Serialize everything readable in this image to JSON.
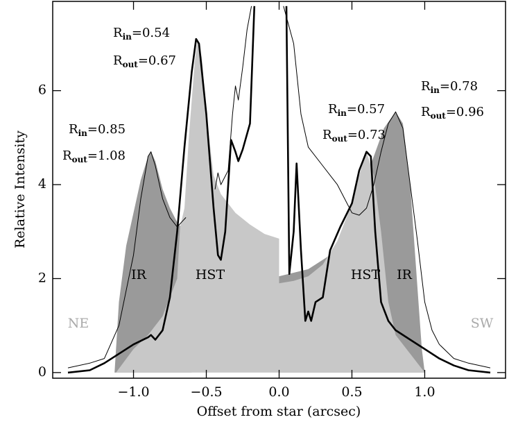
{
  "chart_data": {
    "type": "line",
    "xlabel": "Offset from star (arcsec)",
    "ylabel": "Relative Intensity",
    "xlim": [
      -1.555,
      1.555
    ],
    "ylim": [
      -0.12,
      7.9
    ],
    "xticks": [
      {
        "value": -1,
        "label": "−1.0"
      },
      {
        "value": -0.5,
        "label": "−0.5"
      },
      {
        "value": 0,
        "label": "0.0"
      },
      {
        "value": 0.5,
        "label": "0.5"
      },
      {
        "value": 1,
        "label": "1.0"
      }
    ],
    "yticks": [
      0,
      2,
      4,
      6
    ],
    "series": [
      {
        "style": "area",
        "color": "#9a9a9a",
        "x": [
          -1.13,
          -1.1,
          -1.05,
          -1.0,
          -0.95,
          -0.9,
          -0.88,
          -0.85,
          -0.8,
          -0.75,
          -0.7,
          -0.65,
          -0.6,
          null,
          0.0,
          0.2,
          0.35,
          0.45,
          0.55,
          0.65,
          0.72,
          0.8,
          0.85,
          0.9,
          0.95,
          0.98,
          1.0
        ],
        "values": [
          0,
          1.5,
          2.7,
          3.4,
          4.1,
          4.6,
          4.7,
          4.5,
          3.9,
          3.5,
          3.2,
          3.0,
          2.9,
          null,
          2.05,
          2.2,
          2.5,
          3.0,
          3.8,
          4.6,
          5.2,
          5.55,
          5.3,
          4.0,
          1.8,
          0.5,
          0
        ]
      },
      {
        "style": "area",
        "color": "#c8c8c8",
        "x": [
          -1.12,
          -1.0,
          -0.9,
          -0.8,
          -0.7,
          -0.68,
          -0.65,
          -0.62,
          -0.58,
          -0.56,
          -0.53,
          -0.5,
          -0.45,
          -0.4,
          -0.3,
          -0.2,
          -0.1,
          0.0,
          null,
          0.0,
          0.1,
          0.2,
          0.3,
          0.4,
          0.5,
          0.55,
          0.6,
          0.65,
          0.7,
          0.75,
          0.8,
          0.9,
          1.0
        ],
        "values": [
          0,
          0.5,
          0.8,
          1.2,
          2.0,
          3.1,
          3.5,
          5.0,
          6.6,
          7.1,
          6.7,
          5.5,
          4.2,
          3.8,
          3.4,
          3.15,
          2.95,
          2.85,
          null,
          1.9,
          1.95,
          2.05,
          2.3,
          2.8,
          3.6,
          4.2,
          4.7,
          4.2,
          3.0,
          1.5,
          0.8,
          0.4,
          0
        ]
      },
      {
        "style": "thin",
        "color": "#000000",
        "x": [
          -1.45,
          -1.3,
          -1.2,
          -1.1,
          -1.0,
          -0.95,
          -0.9,
          -0.88,
          -0.85,
          -0.8,
          -0.75,
          -0.7,
          -0.67,
          -0.64,
          null,
          -0.44,
          -0.42,
          -0.4,
          -0.35,
          -0.32,
          -0.3,
          -0.28,
          -0.25,
          -0.22,
          -0.19,
          null,
          0.03,
          0.1,
          0.15,
          0.2,
          0.3,
          0.4,
          0.45,
          0.5,
          0.55,
          0.6,
          0.65,
          0.7,
          0.75,
          0.8,
          0.85,
          0.9,
          0.95,
          1.0,
          1.05,
          1.1,
          1.2,
          1.3,
          1.45
        ],
        "values": [
          0.1,
          0.2,
          0.3,
          1.0,
          2.5,
          3.7,
          4.6,
          4.7,
          4.4,
          3.7,
          3.3,
          3.1,
          3.2,
          3.3,
          null,
          3.9,
          4.25,
          4.0,
          4.3,
          5.5,
          6.1,
          5.8,
          6.5,
          7.3,
          7.8,
          null,
          7.8,
          7.0,
          5.5,
          4.8,
          4.4,
          4.0,
          3.7,
          3.4,
          3.35,
          3.5,
          4.0,
          4.7,
          5.3,
          5.55,
          5.2,
          4.0,
          2.8,
          1.5,
          0.9,
          0.6,
          0.3,
          0.2,
          0.1
        ]
      },
      {
        "style": "thick",
        "color": "#000000",
        "x": [
          -1.45,
          -1.3,
          -1.2,
          -1.1,
          -1.0,
          -0.9,
          -0.88,
          -0.85,
          -0.8,
          -0.75,
          -0.7,
          -0.65,
          -0.6,
          -0.57,
          -0.55,
          -0.5,
          -0.45,
          -0.42,
          -0.4,
          -0.37,
          -0.33,
          -0.3,
          -0.28,
          -0.25,
          -0.2,
          -0.17,
          null,
          0.05,
          0.07,
          0.1,
          0.12,
          0.15,
          0.18,
          0.2,
          0.22,
          0.25,
          0.3,
          0.35,
          0.42,
          0.5,
          0.55,
          0.6,
          0.63,
          0.66,
          0.7,
          0.75,
          0.8,
          0.9,
          1.0,
          1.1,
          1.2,
          1.3,
          1.45
        ],
        "values": [
          0.0,
          0.05,
          0.2,
          0.4,
          0.6,
          0.75,
          0.8,
          0.7,
          0.9,
          1.6,
          3.0,
          4.8,
          6.4,
          7.1,
          7.0,
          5.5,
          3.5,
          2.5,
          2.4,
          3.0,
          4.95,
          4.7,
          4.5,
          4.75,
          5.3,
          7.8,
          null,
          7.8,
          2.1,
          3.0,
          4.45,
          2.6,
          1.1,
          1.3,
          1.1,
          1.5,
          1.6,
          2.6,
          3.1,
          3.6,
          4.3,
          4.7,
          4.6,
          3.0,
          1.5,
          1.1,
          0.9,
          0.7,
          0.5,
          0.3,
          0.15,
          0.05,
          0.0
        ]
      }
    ],
    "labels": [
      "IR",
      "HST",
      "HST",
      "IR",
      "NE",
      "SW"
    ],
    "radii": [
      {
        "text": "R",
        "sub": "in",
        "rest": "=0.54"
      },
      {
        "text": "R",
        "sub": "out",
        "rest": "=0.67"
      },
      {
        "text": "R",
        "sub": "in",
        "rest": "=0.85"
      },
      {
        "text": "R",
        "sub": "out",
        "rest": "=1.08"
      },
      {
        "text": "R",
        "sub": "in",
        "rest": "=0.57"
      },
      {
        "text": "R",
        "sub": "out",
        "rest": "=0.73"
      },
      {
        "text": "R",
        "sub": "in",
        "rest": "=0.78"
      },
      {
        "text": "R",
        "sub": "out",
        "rest": "=0.96"
      }
    ]
  }
}
